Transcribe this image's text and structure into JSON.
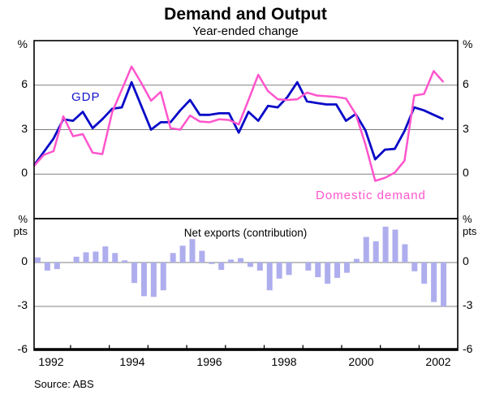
{
  "title": "Demand and Output",
  "subtitle": "Year-ended change",
  "source": "Source: ABS",
  "labels": {
    "pct": "%",
    "pts": "pts"
  },
  "chart_data": {
    "type": "line+bar",
    "x_unit": "quarterly, 1991Q3 to 2002Q1",
    "x_tick_labels": [
      "1992",
      "1994",
      "1996",
      "1998",
      "2000",
      "2002"
    ],
    "grid": "horizontal gridlines on",
    "top_panel": {
      "unit": "%",
      "ylim": [
        -3,
        9
      ],
      "gridlines": [
        6,
        3,
        0
      ],
      "ytick_labels": [
        "6",
        "3",
        "0"
      ],
      "series": [
        {
          "name": "GDP",
          "type": "line",
          "color": "#0a0ac8",
          "values": [
            0.6,
            1.5,
            2.4,
            3.7,
            3.6,
            4.2,
            3.1,
            3.7,
            4.4,
            4.5,
            6.2,
            4.6,
            3.0,
            3.5,
            3.5,
            4.3,
            5.0,
            4.0,
            4.0,
            4.1,
            4.1,
            2.8,
            4.2,
            3.6,
            4.6,
            4.5,
            5.2,
            6.2,
            4.9,
            4.8,
            4.7,
            4.7,
            3.6,
            4.05,
            2.95,
            1.0,
            1.65,
            1.7,
            2.9,
            4.5,
            4.3,
            4.0,
            3.7
          ]
        },
        {
          "name": "Domestic demand",
          "type": "line",
          "color": "#ff55cc",
          "values": [
            0.55,
            1.3,
            1.55,
            3.9,
            2.55,
            2.7,
            1.45,
            1.35,
            4.15,
            5.7,
            7.25,
            6.15,
            4.95,
            5.55,
            3.1,
            3.0,
            3.95,
            3.55,
            3.5,
            3.7,
            3.65,
            3.35,
            5.0,
            6.7,
            5.6,
            5.05,
            5.0,
            5.05,
            5.5,
            5.3,
            5.25,
            5.2,
            5.1,
            4.05,
            2.0,
            -0.45,
            -0.25,
            0.1,
            0.9,
            5.3,
            5.4,
            6.95,
            6.2
          ]
        }
      ]
    },
    "bottom_panel": {
      "unit": "% pts",
      "label": "Net exports (contribution)",
      "ylim": [
        -6,
        3
      ],
      "gridlines": [
        0,
        -3
      ],
      "ytick_labels": [
        "0",
        "-3",
        "-6"
      ],
      "series": [
        {
          "name": "Net exports (contribution)",
          "type": "bar",
          "color": "#aeaeee",
          "values": [
            0.35,
            -0.55,
            -0.45,
            0,
            0.4,
            0.7,
            0.75,
            1.1,
            0.65,
            0.15,
            -1.4,
            -2.3,
            -2.35,
            -1.9,
            0.65,
            1.15,
            1.6,
            0.8,
            -0.1,
            -0.5,
            0.2,
            0.3,
            -0.3,
            -0.55,
            -1.9,
            -1.1,
            -0.85,
            0,
            -0.55,
            -1.0,
            -1.45,
            -1.05,
            -0.7,
            0.25,
            1.75,
            1.45,
            2.45,
            2.25,
            1.25,
            -0.6,
            -1.45,
            -2.7,
            -3.0
          ]
        }
      ]
    }
  }
}
